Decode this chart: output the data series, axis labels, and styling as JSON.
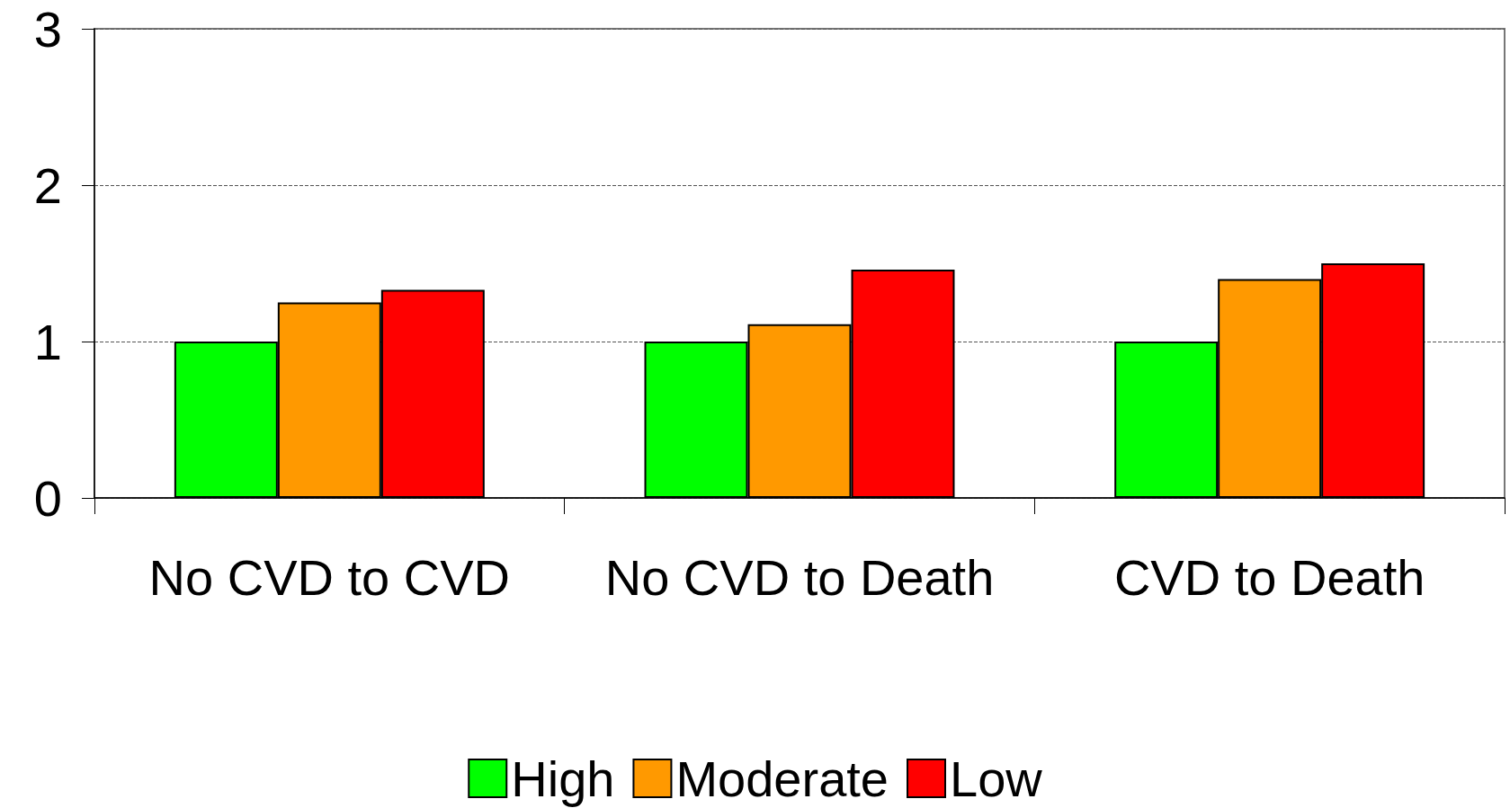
{
  "chart_data": {
    "type": "bar",
    "categories": [
      "No CVD to CVD",
      "No CVD to Death",
      "CVD to Death"
    ],
    "series": [
      {
        "name": "High",
        "color": "#00ff00",
        "values": [
          1.0,
          1.0,
          1.0
        ]
      },
      {
        "name": "Moderate",
        "color": "#ff9900",
        "values": [
          1.25,
          1.11,
          1.4
        ]
      },
      {
        "name": "Low",
        "color": "#ff0000",
        "values": [
          1.33,
          1.46,
          1.5
        ]
      }
    ],
    "ylim": [
      0,
      3
    ],
    "yticks": [
      0,
      1,
      2,
      3
    ],
    "grid": "y",
    "legend": "bottom"
  }
}
